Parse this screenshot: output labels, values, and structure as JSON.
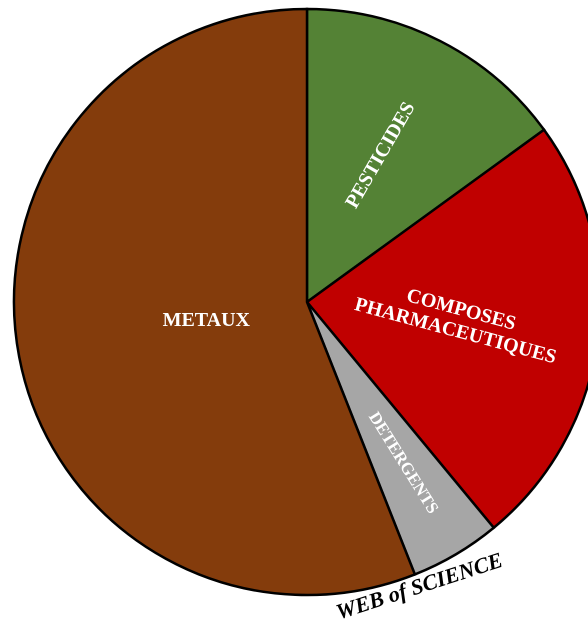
{
  "chart_data": {
    "type": "pie",
    "categories": [
      "PESTICIDES",
      "COMPOSES PHARMACEUTIQUES",
      "DETERGENTS",
      "METAUX"
    ],
    "values": [
      15,
      24,
      5,
      56
    ],
    "colors": [
      "#548235",
      "#c00000",
      "#a6a6a6",
      "#843c0c"
    ],
    "annotation": "WEB of SCIENCE"
  }
}
